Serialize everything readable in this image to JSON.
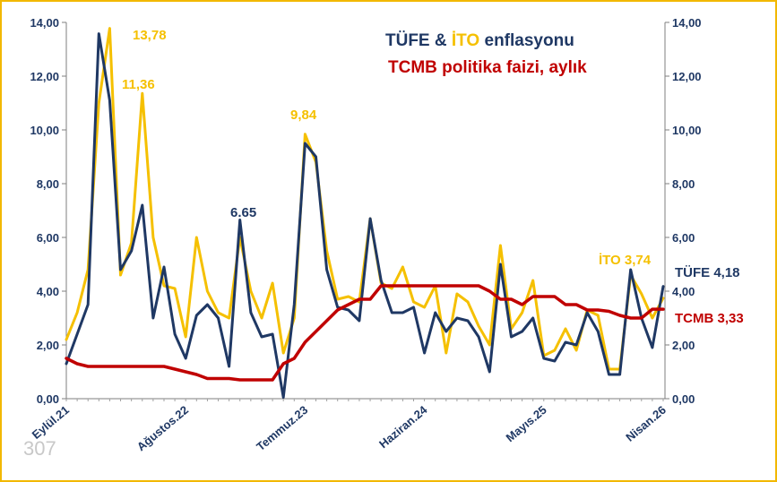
{
  "chart_data": {
    "type": "line",
    "title": {
      "tufe": "TÜFE",
      "amp": " & ",
      "ito": "İTO",
      "rest": " enflasyonu",
      "line2": "TCMB politika faizi, aylık"
    },
    "y_ticks": [
      "0,00",
      "2,00",
      "4,00",
      "6,00",
      "8,00",
      "10,00",
      "12,00",
      "14,00"
    ],
    "ylim": [
      0,
      14
    ],
    "x_tick_labels": [
      {
        "label": "Eylül.21",
        "index": 0
      },
      {
        "label": "Ağustos.22",
        "index": 11
      },
      {
        "label": "Temmuz.23",
        "index": 22
      },
      {
        "label": "Haziran.24",
        "index": 33
      },
      {
        "label": "Mayıs.25",
        "index": 44
      },
      {
        "label": "Nisan.26",
        "index": 55
      }
    ],
    "n_points": 56,
    "series": [
      {
        "key": "ito",
        "color": "#f5c000",
        "values": [
          2.2,
          3.2,
          4.8,
          11.0,
          13.78,
          4.6,
          5.8,
          11.36,
          6.0,
          4.2,
          4.1,
          2.3,
          6.0,
          4.0,
          3.2,
          3.0,
          6.0,
          4.0,
          3.0,
          4.3,
          1.7,
          3.0,
          9.84,
          8.8,
          5.5,
          3.7,
          3.8,
          3.6,
          6.7,
          4.3,
          4.1,
          4.9,
          3.6,
          3.4,
          4.2,
          1.7,
          3.9,
          3.6,
          2.7,
          2.0,
          5.7,
          2.6,
          3.2,
          4.4,
          1.6,
          1.8,
          2.6,
          1.8,
          3.3,
          3.1,
          1.1,
          1.1,
          4.6,
          3.9,
          3.0,
          3.74
        ]
      },
      {
        "key": "tufe",
        "color": "#1f3864",
        "values": [
          1.3,
          2.4,
          3.5,
          13.58,
          11.1,
          4.8,
          5.5,
          7.2,
          3.0,
          4.9,
          2.4,
          1.5,
          3.1,
          3.5,
          3.0,
          1.2,
          6.65,
          3.2,
          2.3,
          2.4,
          0.05,
          3.5,
          9.5,
          9.0,
          4.8,
          3.4,
          3.3,
          2.9,
          6.7,
          4.4,
          3.2,
          3.2,
          3.4,
          1.7,
          3.2,
          2.5,
          3.0,
          2.9,
          2.3,
          1.0,
          5.0,
          2.3,
          2.5,
          3.0,
          1.5,
          1.4,
          2.1,
          2.0,
          3.2,
          2.5,
          0.9,
          0.9,
          4.8,
          3.0,
          1.9,
          4.18
        ]
      },
      {
        "key": "tcmb",
        "color": "#c00000",
        "values": [
          1.5,
          1.3,
          1.2,
          1.2,
          1.2,
          1.2,
          1.2,
          1.2,
          1.2,
          1.2,
          1.1,
          1.0,
          0.9,
          0.75,
          0.75,
          0.75,
          0.7,
          0.7,
          0.7,
          0.7,
          1.3,
          1.5,
          2.1,
          2.5,
          2.9,
          3.3,
          3.5,
          3.7,
          3.7,
          4.2,
          4.2,
          4.2,
          4.2,
          4.2,
          4.2,
          4.2,
          4.2,
          4.2,
          4.2,
          4.0,
          3.7,
          3.7,
          3.5,
          3.8,
          3.8,
          3.8,
          3.5,
          3.5,
          3.3,
          3.3,
          3.25,
          3.1,
          3.0,
          3.0,
          3.33,
          3.33
        ]
      }
    ],
    "annotations": [
      {
        "key": "ito-peak",
        "text": "13,78",
        "color": "#f5c000"
      },
      {
        "key": "ito-second",
        "text": "11,36",
        "color": "#f5c000"
      },
      {
        "key": "tufe-mid",
        "text": "6.65",
        "color": "#1f3864"
      },
      {
        "key": "ito-2023",
        "text": "9,84",
        "color": "#f5c000"
      },
      {
        "key": "ito-last",
        "text": "İTO 3,74",
        "color": "#f5c000"
      },
      {
        "key": "tufe-last",
        "text": "TÜFE 4,18",
        "color": "#1f3864"
      },
      {
        "key": "tcmb-last",
        "text": "TCMB 3,33",
        "color": "#c00000"
      }
    ],
    "watermark": "307",
    "grid": false
  }
}
